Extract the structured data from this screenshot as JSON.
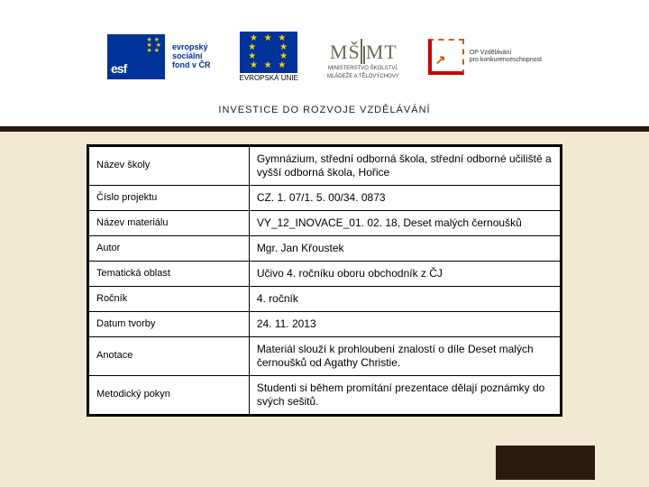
{
  "header": {
    "subhead": "INVESTICE DO ROZVOJE VZDĚLÁVÁNÍ",
    "logos": {
      "esf": {
        "flag_text": "esf",
        "label_line1": "evropský",
        "label_line2": "sociální",
        "label_line3": "fond v ČR",
        "color": "#003399"
      },
      "eu": {
        "label_line1": "EVROPSKÁ UNIE",
        "color": "#003399"
      },
      "msmt": {
        "text": "MŠMT",
        "label_line1": "MINISTERSTVO ŠKOLSTVÍ,",
        "label_line2": "MLÁDEŽE A TĚLOVÝCHOVY"
      },
      "op": {
        "label_line1": "OP Vzdělávání",
        "label_line2": "pro konkurenceschopnost"
      }
    }
  },
  "table": {
    "background": "#ffffff",
    "border_color": "#000000",
    "font_size_label": 11,
    "font_size_value": 12,
    "col_widths": [
      "34%",
      "66%"
    ],
    "rows": [
      {
        "label": "Název školy",
        "value": "Gymnázium, střední odborná škola, střední odborné učiliště a vyšší odborná škola, Hořice"
      },
      {
        "label": "Číslo projektu",
        "value": "CZ. 1. 07/1. 5. 00/34. 0873"
      },
      {
        "label": "Název materiálu",
        "value": "VY_12_INOVACE_01. 02. 18, Deset malých černoušků"
      },
      {
        "label": "Autor",
        "value": "Mgr. Jan Křoustek"
      },
      {
        "label": "Tematická oblast",
        "value": "Učivo 4. ročníku oboru obchodník z ČJ"
      },
      {
        "label": "Ročník",
        "value": "4. ročník"
      },
      {
        "label": "Datum tvorby",
        "value": "24. 11. 2013"
      },
      {
        "label": "Anotace",
        "value": "Materiál slouží k prohloubení znalostí o díle Deset malých černoušků od Agathy Christie."
      },
      {
        "label": "Metodický pokyn",
        "value": "Studenti si během promítání prezentace dělají poznámky do svých sešitů."
      }
    ]
  },
  "page": {
    "background": "#efead1",
    "header_band_color": "#ffffff",
    "divider_color": "#2a1a10"
  }
}
